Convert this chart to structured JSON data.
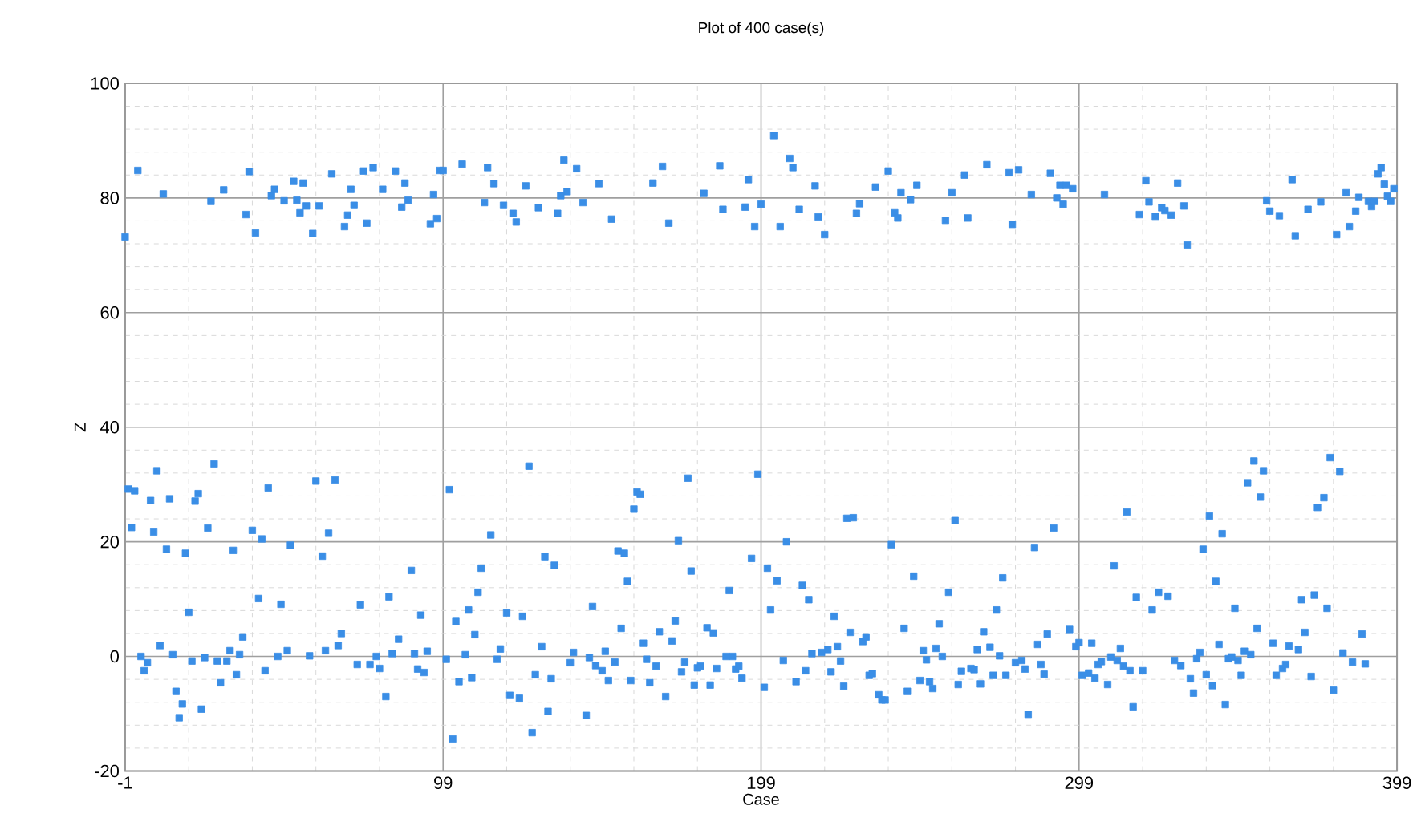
{
  "chart_data": {
    "type": "scatter",
    "title": "Plot of 400 case(s)",
    "xlabel": "Case",
    "ylabel": "Z",
    "xlim": [
      -1,
      399
    ],
    "xticks": [
      -1,
      99,
      199,
      299,
      399
    ],
    "ylim": [
      -20,
      100
    ],
    "yticks": [
      -20,
      0,
      20,
      40,
      60,
      80,
      100
    ],
    "grid": true,
    "marker": "square",
    "series": [
      {
        "color": "#3a8ee6",
        "x": [
          -1,
          3,
          11,
          26,
          30,
          37,
          38,
          40,
          45,
          46,
          49,
          52,
          53,
          54,
          55,
          56,
          58,
          60,
          64,
          68,
          69,
          70,
          71,
          74,
          75,
          77,
          80,
          84,
          86,
          87,
          88,
          95,
          96,
          97,
          98,
          99,
          105,
          112,
          113,
          115,
          118,
          121,
          122,
          125,
          129,
          135,
          136,
          137,
          138,
          141,
          143,
          148,
          152,
          165,
          168,
          170,
          181,
          186,
          187,
          194,
          195,
          197,
          199,
          203,
          208,
          209,
          205,
          211,
          216,
          217,
          219,
          229,
          230,
          235,
          239,
          241,
          242,
          243,
          246,
          248,
          257,
          259,
          263,
          264,
          270,
          277,
          278,
          280,
          284,
          290,
          292,
          293,
          294,
          295,
          297,
          307,
          318,
          320,
          321,
          323,
          325,
          326,
          328,
          330,
          332,
          333,
          358,
          359,
          362,
          366,
          367,
          371,
          375,
          380,
          383,
          384,
          386,
          387,
          390,
          391,
          392,
          393,
          394,
          395,
          396,
          397,
          398,
          0,
          2,
          1,
          9,
          7,
          13,
          8,
          12,
          18,
          19,
          21,
          22,
          27,
          25,
          33,
          39,
          42,
          44,
          51,
          41,
          48,
          59,
          65,
          61,
          63,
          4,
          5,
          6,
          10,
          14,
          15,
          17,
          16,
          20,
          23,
          24,
          28,
          29,
          31,
          32,
          34,
          35,
          36,
          43,
          47,
          50,
          57,
          62,
          66,
          67,
          73,
          72,
          76,
          78,
          79,
          81,
          82,
          83,
          85,
          89,
          90,
          91,
          92,
          93,
          94,
          100,
          101,
          102,
          103,
          104,
          106,
          107,
          108,
          109,
          110,
          111,
          114,
          116,
          117,
          119,
          120,
          123,
          124,
          126,
          127,
          128,
          130,
          131,
          132,
          133,
          134,
          139,
          140,
          144,
          145,
          146,
          147,
          149,
          150,
          151,
          153,
          154,
          155,
          156,
          157,
          158,
          159,
          160,
          161,
          162,
          163,
          164,
          166,
          167,
          169,
          171,
          172,
          173,
          174,
          175,
          176,
          177,
          178,
          179,
          180,
          182,
          183,
          184,
          185,
          188,
          189,
          190,
          191,
          192,
          193,
          196,
          198,
          201,
          200,
          202,
          207,
          204,
          206,
          210,
          212,
          214,
          213,
          215,
          218,
          220,
          222,
          223,
          221,
          224,
          225,
          226,
          228,
          227,
          231,
          232,
          233,
          234,
          236,
          237,
          238,
          240,
          244,
          245,
          247,
          249,
          250,
          251,
          252,
          253,
          254,
          255,
          256,
          258,
          260,
          261,
          262,
          265,
          266,
          267,
          268,
          269,
          271,
          272,
          273,
          274,
          275,
          276,
          279,
          281,
          282,
          283,
          285,
          286,
          287,
          288,
          289,
          291,
          296,
          298,
          299,
          300,
          302,
          303,
          304,
          305,
          306,
          308,
          309,
          310,
          311,
          312,
          313,
          314,
          315,
          316,
          317,
          319,
          322,
          324,
          327,
          329,
          331,
          334,
          335,
          336,
          337,
          338,
          339,
          340,
          341,
          342,
          343,
          344,
          345,
          346,
          347,
          348,
          349,
          350,
          351,
          353,
          352,
          354,
          355,
          356,
          357,
          360,
          361,
          363,
          364,
          365,
          368,
          369,
          370,
          372,
          373,
          374,
          376,
          377,
          378,
          379,
          381,
          382,
          385,
          388,
          389
        ],
        "values": [
          73.2,
          84.8,
          80.7,
          79.4,
          81.4,
          77.1,
          84.6,
          73.9,
          80.4,
          81.5,
          79.5,
          82.9,
          79.6,
          77.4,
          82.6,
          78.6,
          73.8,
          78.6,
          84.2,
          75,
          77,
          81.5,
          78.7,
          84.7,
          75.6,
          85.3,
          81.5,
          84.7,
          78.4,
          82.6,
          79.6,
          75.5,
          80.6,
          76.4,
          84.8,
          84.8,
          85.9,
          79.2,
          85.3,
          82.5,
          78.7,
          77.3,
          75.8,
          82.1,
          78.3,
          77.3,
          80.4,
          86.6,
          81.1,
          85.1,
          79.2,
          82.5,
          76.3,
          82.6,
          85.5,
          75.6,
          80.8,
          85.6,
          78,
          78.4,
          83.2,
          75,
          78.9,
          90.9,
          86.9,
          85.3,
          75,
          78,
          82.1,
          76.7,
          73.6,
          77.3,
          79,
          81.9,
          84.7,
          77.4,
          76.5,
          80.9,
          79.7,
          82.2,
          76.1,
          80.9,
          84,
          76.5,
          85.8,
          84.4,
          75.4,
          84.9,
          80.6,
          84.3,
          80,
          82.2,
          78.9,
          82.2,
          81.6,
          80.6,
          77.1,
          83,
          79.3,
          76.8,
          78.3,
          77.8,
          77,
          82.6,
          78.6,
          71.8,
          79.5,
          77.7,
          76.9,
          83.2,
          73.4,
          78,
          79.3,
          73.6,
          80.9,
          75,
          77.7,
          80.1,
          79.4,
          78.5,
          79.4,
          84.2,
          85.3,
          82.4,
          80.3,
          79.4,
          81.6,
          29.2,
          28.9,
          22.5,
          32.4,
          27.2,
          27.5,
          21.7,
          18.7,
          18,
          7.7,
          27.1,
          28.4,
          33.6,
          22.4,
          18.5,
          22,
          20.5,
          29.4,
          19.4,
          10.1,
          9.1,
          30.6,
          30.8,
          17.5,
          21.5,
          0,
          -2.5,
          -1.1,
          1.9,
          0.3,
          -6.1,
          -8.3,
          -10.7,
          -0.8,
          -9.2,
          -0.2,
          -0.8,
          -4.6,
          -0.8,
          1,
          -3.2,
          0.3,
          3.4,
          -2.5,
          0,
          1,
          0.1,
          1,
          1.9,
          4,
          9,
          -1.4,
          -1.4,
          0,
          -2.1,
          -7,
          10.4,
          0.5,
          3,
          15,
          0.5,
          -2.2,
          7.2,
          -2.8,
          0.9,
          -0.5,
          29.1,
          -14.4,
          6.1,
          -4.4,
          0.3,
          8.1,
          -3.7,
          3.8,
          11.2,
          15.4,
          21.2,
          -0.5,
          1.3,
          7.6,
          -6.8,
          -7.3,
          7,
          33.2,
          -13.3,
          -3.2,
          1.7,
          17.4,
          -9.6,
          -3.9,
          15.9,
          -1.1,
          0.7,
          -10.3,
          -0.2,
          8.7,
          -1.6,
          -2.5,
          0.9,
          -4.2,
          -1,
          18.4,
          4.9,
          18,
          13.1,
          -4.2,
          25.7,
          28.7,
          28.3,
          2.3,
          -0.5,
          -4.6,
          -1.7,
          4.3,
          -7,
          2.7,
          6.2,
          20.2,
          -2.7,
          -1,
          31.1,
          14.9,
          -5,
          -2,
          -1.7,
          5,
          -5,
          4.1,
          -2.1,
          0,
          11.5,
          0,
          -2.2,
          -1.7,
          -3.8,
          17.1,
          31.8,
          15.4,
          -5.4,
          8.1,
          20,
          13.2,
          -0.7,
          -4.4,
          12.4,
          9.9,
          -2.5,
          0.5,
          0.7,
          1.2,
          7,
          1.7,
          -2.7,
          -0.8,
          -5.2,
          24.1,
          24.2,
          4.2,
          2.6,
          3.4,
          -3.3,
          -3,
          -6.7,
          -7.6,
          -7.6,
          19.5,
          4.9,
          -6.1,
          14,
          -4.2,
          1,
          -0.6,
          -4.4,
          -5.6,
          1.4,
          5.7,
          0,
          11.2,
          23.7,
          -4.9,
          -2.6,
          -2.1,
          -2.3,
          1.2,
          -4.8,
          4.3,
          1.6,
          -3.3,
          8.1,
          0.1,
          13.7,
          -3.3,
          -1.1,
          -0.7,
          -2.2,
          -10.1,
          19,
          2.1,
          -1.4,
          -3.1,
          3.9,
          22.4,
          4.7,
          1.7,
          2.4,
          -3.3,
          -2.9,
          2.3,
          -3.8,
          -1.4,
          -0.9,
          -4.9,
          -0.1,
          15.8,
          -0.7,
          1.4,
          -1.7,
          25.2,
          -2.5,
          -8.8,
          10.3,
          -2.5,
          8.1,
          11.2,
          10.5,
          -0.7,
          -1.6,
          -3.9,
          -6.4,
          -0.4,
          0.7,
          18.7,
          -3.2,
          24.5,
          -5.1,
          13.1,
          2.1,
          21.4,
          -8.4,
          -0.4,
          -0.1,
          8.4,
          -0.7,
          -3.3,
          0.9,
          0.3,
          30.3,
          34.1,
          4.9,
          27.8,
          32.4,
          2.3,
          -3.3,
          -2.1,
          -1.4,
          1.8,
          1.2,
          9.9,
          4.2,
          -3.5,
          10.7,
          26,
          27.7,
          8.4,
          34.7,
          -5.9,
          32.3,
          0.6,
          -1,
          3.9,
          -1.3
        ]
      }
    ]
  }
}
